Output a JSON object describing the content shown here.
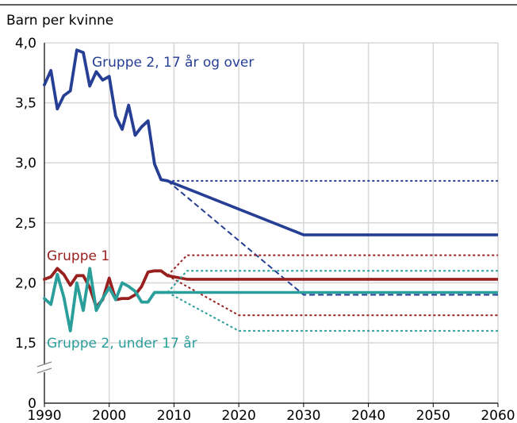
{
  "chart_data": {
    "type": "line",
    "title": "",
    "ylabel": "Barn per kvinne",
    "xlabel": "",
    "xlim": [
      1990,
      2060
    ],
    "ylim": [
      0,
      4.0
    ],
    "axis_break": true,
    "x_ticks": [
      1990,
      2000,
      2010,
      2020,
      2030,
      2040,
      2050,
      2060
    ],
    "y_ticks": [
      {
        "value": 0,
        "label": "0"
      },
      {
        "value": 1.5,
        "label": "1,5"
      },
      {
        "value": 2.0,
        "label": "2,0"
      },
      {
        "value": 2.5,
        "label": "2,5"
      },
      {
        "value": 3.0,
        "label": "3,0"
      },
      {
        "value": 3.5,
        "label": "3,5"
      },
      {
        "value": 4.0,
        "label": "4,0"
      }
    ],
    "grid": true,
    "colors": {
      "group2_over17": "#263f95",
      "group1": "#98201f",
      "group2_under17": "#2a9e9a",
      "grid": "#d9d9d9",
      "axis": "#000000"
    },
    "series": [
      {
        "name": "Gruppe 2, 17 år og over",
        "color": "#263f95",
        "historical": {
          "x": [
            1990,
            1991,
            1992,
            1993,
            1994,
            1995,
            1996,
            1997,
            1998,
            1999,
            2000,
            2001,
            2002,
            2003,
            2004,
            2005,
            2006,
            2007,
            2008,
            2009
          ],
          "y": [
            3.65,
            3.77,
            3.45,
            3.56,
            3.6,
            3.94,
            3.92,
            3.64,
            3.76,
            3.69,
            3.72,
            3.39,
            3.28,
            3.48,
            3.23,
            3.3,
            3.35,
            2.99,
            2.86,
            2.85
          ]
        },
        "projections": [
          {
            "style": "solid",
            "x": [
              2009,
              2030,
              2060
            ],
            "y": [
              2.85,
              2.4,
              2.4
            ]
          },
          {
            "style": "dotted",
            "x": [
              2009,
              2060
            ],
            "y": [
              2.85,
              2.85
            ]
          },
          {
            "style": "dashed",
            "x": [
              2009,
              2030,
              2060
            ],
            "y": [
              2.85,
              1.9,
              1.9
            ]
          }
        ]
      },
      {
        "name": "Gruppe 1",
        "color": "#98201f",
        "historical": {
          "x": [
            1990,
            1991,
            1992,
            1993,
            1994,
            1995,
            1996,
            1997,
            1998,
            1999,
            2000,
            2001,
            2002,
            2003,
            2004,
            2005,
            2006,
            2007,
            2008,
            2009
          ],
          "y": [
            2.03,
            2.05,
            2.12,
            2.07,
            1.98,
            2.06,
            2.06,
            1.96,
            1.8,
            1.86,
            2.04,
            1.86,
            1.87,
            1.87,
            1.9,
            1.97,
            2.09,
            2.1,
            2.1,
            2.06
          ]
        },
        "projections": [
          {
            "style": "solid",
            "x": [
              2009,
              2012,
              2060
            ],
            "y": [
              2.06,
              2.03,
              2.03
            ]
          },
          {
            "style": "dotted",
            "x": [
              2009,
              2012,
              2060
            ],
            "y": [
              2.06,
              2.23,
              2.23
            ]
          },
          {
            "style": "dotted",
            "x": [
              2009,
              2020,
              2060
            ],
            "y": [
              2.06,
              1.73,
              1.73
            ]
          }
        ]
      },
      {
        "name": "Gruppe 2, under 17 år",
        "color": "#2a9e9a",
        "historical": {
          "x": [
            1990,
            1991,
            1992,
            1993,
            1994,
            1995,
            1996,
            1997,
            1998,
            1999,
            2000,
            2001,
            2002,
            2003,
            2004,
            2005,
            2006,
            2007,
            2008,
            2009
          ],
          "y": [
            1.87,
            1.82,
            2.07,
            1.88,
            1.6,
            2.0,
            1.77,
            2.12,
            1.77,
            1.87,
            1.96,
            1.86,
            2.0,
            1.97,
            1.93,
            1.84,
            1.84,
            1.92,
            1.92,
            1.92
          ]
        },
        "projections": [
          {
            "style": "solid",
            "x": [
              2009,
              2060
            ],
            "y": [
              1.92,
              1.92
            ]
          },
          {
            "style": "dotted",
            "x": [
              2009,
              2012,
              2060
            ],
            "y": [
              1.92,
              2.1,
              2.1
            ]
          },
          {
            "style": "dotted",
            "x": [
              2009,
              2020,
              2060
            ],
            "y": [
              1.92,
              1.6,
              1.6
            ]
          }
        ]
      }
    ],
    "labels": [
      {
        "text": "Gruppe 2, 17 år og over",
        "series": 0
      },
      {
        "text": "Gruppe 1",
        "series": 1
      },
      {
        "text": "Gruppe 2, under 17 år",
        "series": 2
      }
    ]
  }
}
